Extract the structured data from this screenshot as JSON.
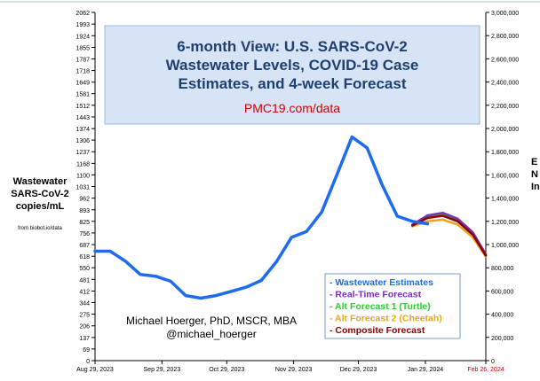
{
  "chart_data": {
    "type": "line",
    "title_lines": [
      "6-month View: U.S. SARS-CoV-2",
      "Wastewater Levels, COVID-19 Case",
      "Estimates, and 4-week Forecast"
    ],
    "subtitle": "PMC19.com/data",
    "ylabel_left": [
      "Wastewater",
      "SARS-CoV-2",
      "copies/mL"
    ],
    "ylabel_left_source": "from biobot.io/data",
    "ylabel_right_partial": [
      "E",
      "N",
      "In"
    ],
    "author": [
      "Michael Hoerger, PhD, MSCR, MBA",
      "@michael_hoerger"
    ],
    "y_left_ticks": [
      "0",
      "69",
      "137",
      "206",
      "275",
      "344",
      "412",
      "481",
      "550",
      "618",
      "687",
      "756",
      "825",
      "893",
      "962",
      "1031",
      "1100",
      "1168",
      "1237",
      "1306",
      "1374",
      "1443",
      "1512",
      "1581",
      "1649",
      "1718",
      "1787",
      "1855",
      "1924",
      "1993",
      "2062"
    ],
    "y_right_ticks": [
      "0",
      "200,000",
      "400,000",
      "600,000",
      "800,000",
      "1,000,000",
      "1,200,000",
      "1,400,000",
      "1,600,000",
      "1,800,000",
      "2,000,000",
      "2,200,000",
      "2,400,000",
      "2,600,000",
      "2,800,000",
      "3,000,000"
    ],
    "ylim_left": [
      0,
      2062
    ],
    "ylim_right": [
      0,
      3000000
    ],
    "x_ticks": [
      {
        "label": "Aug 29, 2023",
        "day": 0,
        "color": "#000000"
      },
      {
        "label": "Sep 29, 2023",
        "day": 31,
        "color": "#000000"
      },
      {
        "label": "Oct 29, 2023",
        "day": 61,
        "color": "#000000"
      },
      {
        "label": "Nov 29, 2023",
        "day": 92,
        "color": "#000000"
      },
      {
        "label": "Dec 29, 2023",
        "day": 122,
        "color": "#000000"
      },
      {
        "label": "Jan 29, 2024",
        "day": 153,
        "color": "#000000"
      },
      {
        "label": "Feb 26, 2024",
        "day": 181,
        "color": "#cc0000"
      }
    ],
    "xlim": [
      0,
      181
    ],
    "grid": false,
    "legend_position": "bottom-right",
    "series": [
      {
        "name": "- Wastewater Estimates",
        "color": "#1e6bf0",
        "x": [
          0,
          7,
          14,
          21,
          28,
          35,
          42,
          49,
          56,
          63,
          70,
          77,
          84,
          91,
          98,
          105,
          112,
          119,
          126,
          133,
          140,
          147,
          154
        ],
        "y": [
          648,
          648,
          590,
          510,
          500,
          470,
          385,
          370,
          385,
          410,
          435,
          475,
          585,
          730,
          765,
          880,
          1100,
          1325,
          1260,
          1040,
          855,
          825,
          810
        ]
      },
      {
        "name": "- Real-Time Forecast",
        "color": "#7b2fb5",
        "x": [
          147,
          154,
          161,
          168,
          175,
          181
        ],
        "y": [
          805,
          860,
          875,
          840,
          760,
          630
        ]
      },
      {
        "name": "- Alt Forecast 1 (Turtle)",
        "color": "#2ecc2e",
        "x": [
          147,
          154,
          161,
          168,
          175,
          181
        ],
        "y": [
          800,
          850,
          865,
          830,
          750,
          625
        ]
      },
      {
        "name": "- Alt Forecast 2 (Cheetah)",
        "color": "#e6a817",
        "x": [
          147,
          154,
          161,
          168,
          175,
          181
        ],
        "y": [
          795,
          825,
          835,
          805,
          730,
          615
        ]
      },
      {
        "name": "- Composite Forecast",
        "color": "#8b0000",
        "x": [
          147,
          154,
          161,
          168,
          175,
          181
        ],
        "y": [
          800,
          845,
          858,
          825,
          745,
          622
        ]
      }
    ]
  }
}
